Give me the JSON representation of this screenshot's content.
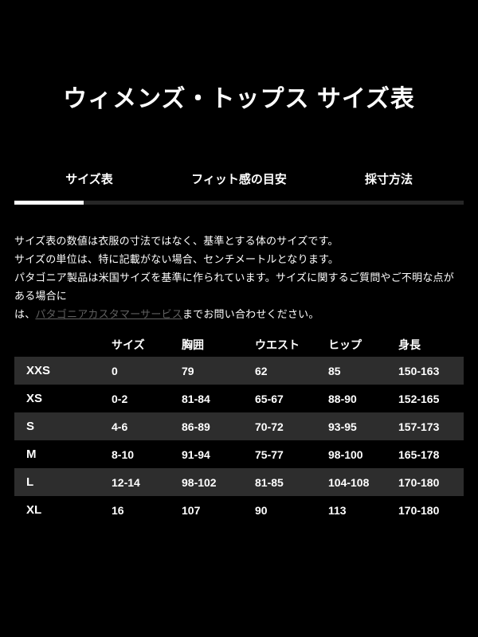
{
  "page": {
    "title": "ウィメンズ・トップス サイズ表"
  },
  "tabs": [
    {
      "label": "サイズ表",
      "active": true
    },
    {
      "label": "フィット感の目安",
      "active": false
    },
    {
      "label": "採寸方法",
      "active": false
    }
  ],
  "notes": {
    "line1": "サイズ表の数値は衣服の寸法ではなく、基準とする体のサイズです。",
    "line2": "サイズの単位は、特に記載がない場合、センチメートルとなります。",
    "line3": "パタゴニア製品は米国サイズを基準に作られています。サイズに関するご質問やご不明な点がある場合に",
    "line4_prefix": "は、",
    "link_text": "パタゴニアカスタマーサービス",
    "line4_suffix": "までお問い合わせください。"
  },
  "size_table": {
    "columns": [
      "サイズ",
      "胸囲",
      "ウエスト",
      "ヒップ",
      "身長"
    ],
    "rows": [
      {
        "label": "XXS",
        "values": [
          "0",
          "79",
          "62",
          "85",
          "150-163"
        ]
      },
      {
        "label": "XS",
        "values": [
          "0-2",
          "81-84",
          "65-67",
          "88-90",
          "152-165"
        ]
      },
      {
        "label": "S",
        "values": [
          "4-6",
          "86-89",
          "70-72",
          "93-95",
          "157-173"
        ]
      },
      {
        "label": "M",
        "values": [
          "8-10",
          "91-94",
          "75-77",
          "98-100",
          "165-178"
        ]
      },
      {
        "label": "L",
        "values": [
          "12-14",
          "98-102",
          "81-85",
          "104-108",
          "170-180"
        ]
      },
      {
        "label": "XL",
        "values": [
          "16",
          "107",
          "90",
          "113",
          "170-180"
        ]
      }
    ]
  },
  "colors": {
    "background": "#000000",
    "text": "#ffffff",
    "stripe": "#2d2d2d",
    "indicator_track": "#262626",
    "indicator_active": "#ffffff",
    "link": "#606060"
  }
}
